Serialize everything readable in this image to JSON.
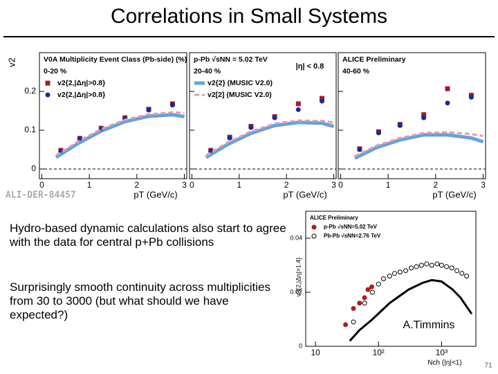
{
  "title": "Correlations in Small Systems",
  "bullets": [
    "Hydro-based dynamic calculations also start to agree with the data for central p+Pb collisions",
    "Surprisingly smooth continuity across multiplicities from 30 to 3000 (but what should we have expected?)"
  ],
  "watermark": "ALI-DER-84457",
  "page_number": "71",
  "chart_data": [
    {
      "type": "scatter",
      "ylabel": "v2",
      "xlabel": "pT (GeV/c)",
      "ytick_labels": true,
      "dashed_zero": true,
      "annotations": [
        "V0A Multiplicity Event Class (Pb-side) (%)",
        "0-20 %"
      ],
      "xlim": [
        -0.05,
        3.05
      ],
      "ylim": [
        -0.025,
        0.3
      ],
      "xticks": [
        0,
        1,
        2,
        3
      ],
      "yticks": [
        0,
        0.1,
        0.2
      ],
      "series": [
        {
          "name": "v2{2,|Δη|>0.8}",
          "marker": "square",
          "color": "#a01c2a",
          "x": [
            0.4,
            0.8,
            1.25,
            1.75,
            2.25,
            2.75
          ],
          "values": [
            0.048,
            0.079,
            0.105,
            0.132,
            0.154,
            0.168
          ]
        },
        {
          "name": "v2{2,|Δη|>0.8}",
          "marker": "circle",
          "color": "#1a2a9a",
          "x": [
            0.4,
            0.8,
            1.25,
            1.75,
            2.25,
            2.75
          ],
          "values": [
            0.045,
            0.077,
            0.103,
            0.13,
            0.152,
            0.165
          ]
        },
        {
          "marker": "band",
          "color": "#4a90d9",
          "x": [
            0.3,
            0.75,
            1.25,
            1.75,
            2.25,
            2.75,
            3
          ],
          "values": [
            0.03,
            0.065,
            0.098,
            0.122,
            0.136,
            0.14,
            0.135
          ]
        },
        {
          "marker": "dashed",
          "color": "#e89aaa",
          "x": [
            0.3,
            0.75,
            1.25,
            1.75,
            2.25,
            2.75,
            3
          ],
          "values": [
            0.035,
            0.07,
            0.103,
            0.127,
            0.141,
            0.146,
            0.145
          ]
        }
      ]
    },
    {
      "type": "scatter",
      "xlabel": "pT (GeV/c)",
      "ytick_labels": false,
      "dashed_zero": true,
      "annotations": [
        "p-Pb √sNN = 5.02 TeV",
        "20-40 %"
      ],
      "note": "|η| < 0.8",
      "xlim": [
        -0.05,
        3.05
      ],
      "ylim": [
        -0.025,
        0.3
      ],
      "xticks": [
        0,
        1,
        2,
        3
      ],
      "yticks": [
        0,
        0.1,
        0.2
      ],
      "series": [
        {
          "marker": "square",
          "color": "#a01c2a",
          "x": [
            0.4,
            0.8,
            1.25,
            1.75,
            2.25,
            2.75
          ],
          "values": [
            0.048,
            0.082,
            0.11,
            0.135,
            0.168,
            0.182
          ]
        },
        {
          "marker": "circle",
          "color": "#1a2a9a",
          "x": [
            0.4,
            0.8,
            1.25,
            1.75,
            2.25,
            2.75
          ],
          "values": [
            0.046,
            0.08,
            0.107,
            0.132,
            0.153,
            0.175
          ]
        },
        {
          "name": "v2{2} (MUSIC V2.0)",
          "marker": "band",
          "color": "#4a90d9",
          "x": [
            0.3,
            0.75,
            1.25,
            1.75,
            2.25,
            2.75,
            3
          ],
          "values": [
            0.03,
            0.063,
            0.092,
            0.112,
            0.12,
            0.118,
            0.11
          ]
        },
        {
          "name": "v2[2] (MUSIC V2.0)",
          "marker": "dashed",
          "color": "#e89aaa",
          "x": [
            0.3,
            0.75,
            1.25,
            1.75,
            2.25,
            2.75,
            3
          ],
          "values": [
            0.035,
            0.068,
            0.097,
            0.117,
            0.125,
            0.124,
            0.12
          ]
        }
      ]
    },
    {
      "type": "scatter",
      "xlabel": "pT (GeV/c)",
      "ytick_labels": false,
      "dashed_zero": true,
      "annotations": [
        "ALICE Preliminary",
        "40-60 %"
      ],
      "xlim": [
        -0.05,
        3.05
      ],
      "ylim": [
        -0.025,
        0.3
      ],
      "xticks": [
        0,
        1,
        2,
        3
      ],
      "yticks": [
        0,
        0.1,
        0.2
      ],
      "series": [
        {
          "marker": "square",
          "color": "#a01c2a",
          "x": [
            0.4,
            0.8,
            1.25,
            1.75,
            2.25,
            2.75
          ],
          "values": [
            0.052,
            0.096,
            0.115,
            0.14,
            0.207,
            0.19
          ]
        },
        {
          "marker": "circle",
          "color": "#1a2a9a",
          "x": [
            0.4,
            0.8,
            1.25,
            1.75,
            2.25,
            2.75
          ],
          "values": [
            0.05,
            0.093,
            0.112,
            0.132,
            0.17,
            0.185
          ]
        },
        {
          "marker": "band",
          "color": "#4a90d9",
          "x": [
            0.3,
            0.75,
            1.25,
            1.75,
            2.25,
            2.75,
            3
          ],
          "values": [
            0.028,
            0.055,
            0.075,
            0.088,
            0.088,
            0.08,
            0.07
          ]
        },
        {
          "marker": "dashed",
          "color": "#e89aaa",
          "x": [
            0.3,
            0.75,
            1.25,
            1.75,
            2.25,
            2.75,
            3
          ],
          "values": [
            0.033,
            0.06,
            0.08,
            0.093,
            0.095,
            0.09,
            0.085
          ]
        }
      ]
    },
    {
      "type": "scatter",
      "xscale": "log",
      "ylabel": "v3{2,|Δη|>1.4}",
      "xlabel": "Nch (|η|<1)",
      "ytick_labels": true,
      "dashed_zero": false,
      "annotations": [
        "ALICE Preliminary"
      ],
      "note": "A.Timmins",
      "xlim": [
        7,
        3500
      ],
      "ylim": [
        0,
        0.05
      ],
      "xticks": [
        10,
        {
          "value": 100,
          "label": "10²"
        },
        {
          "value": 1000,
          "label": "10³"
        }
      ],
      "yticks": [
        0,
        0.02,
        0.04
      ],
      "series": [
        {
          "name": "p-Pb √sNN=5.02 TeV",
          "marker": "circle",
          "color": "#b01c1c",
          "x": [
            30,
            40,
            50,
            60,
            68,
            78
          ],
          "values": [
            0.008,
            0.014,
            0.016,
            0.018,
            0.021,
            0.022
          ]
        },
        {
          "name": "Pb-Pb √sNN=2.76 TeV",
          "marker": "open-circle",
          "color": "#000000",
          "x": [
            40,
            60,
            80,
            100,
            120,
            150,
            180,
            220,
            270,
            330,
            400,
            480,
            580,
            700,
            850,
            1000,
            1200,
            1450,
            1750,
            2100,
            2500
          ],
          "values": [
            0.009,
            0.016,
            0.02,
            0.023,
            0.025,
            0.026,
            0.027,
            0.0275,
            0.028,
            0.029,
            0.0295,
            0.03,
            0.0305,
            0.03,
            0.0305,
            0.03,
            0.0295,
            0.029,
            0.028,
            0.027,
            0.026
          ]
        },
        {
          "marker": "line",
          "color": "#000000",
          "x": [
            35,
            50,
            80,
            150,
            300,
            500,
            700,
            1000,
            1500,
            2000,
            3000
          ],
          "values": [
            0.002,
            0.006,
            0.01,
            0.016,
            0.021,
            0.0235,
            0.0245,
            0.024,
            0.021,
            0.018,
            0.012
          ]
        }
      ]
    }
  ]
}
